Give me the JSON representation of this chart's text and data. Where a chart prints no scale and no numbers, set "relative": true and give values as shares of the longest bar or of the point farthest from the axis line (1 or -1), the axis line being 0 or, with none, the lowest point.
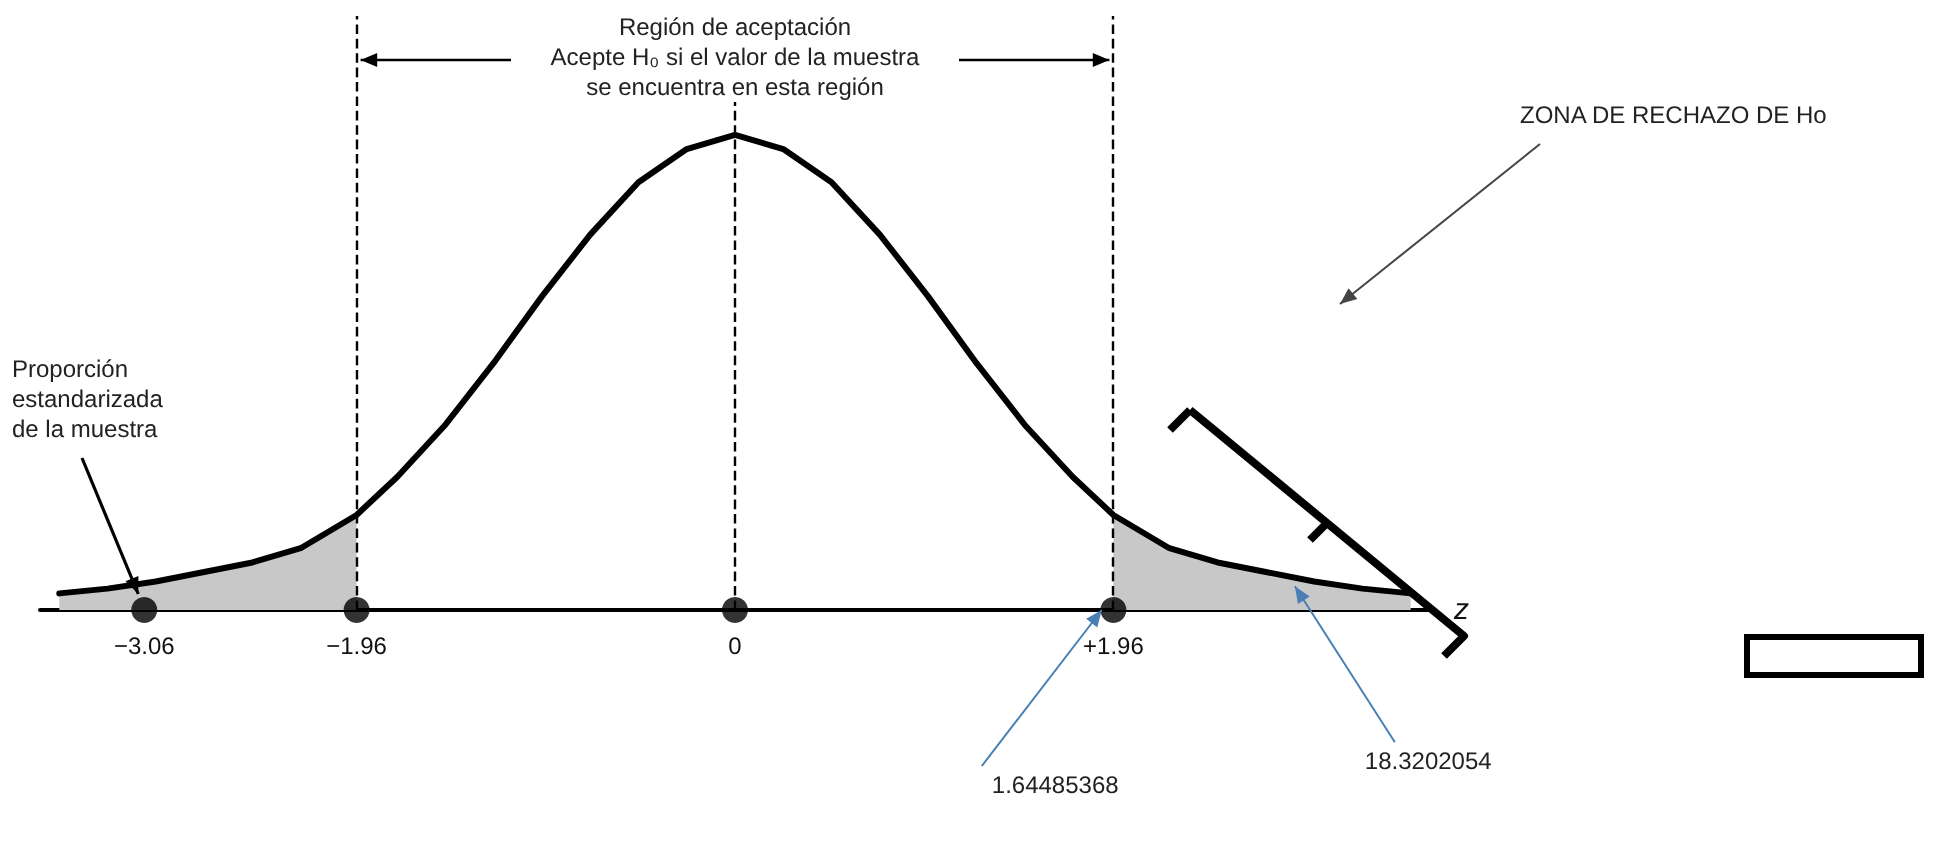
{
  "chart_data": {
    "type": "line",
    "relative": true,
    "xlabel": "z",
    "xlim": [
      -3.6,
      3.6
    ],
    "xticks": [
      {
        "value": -3.06,
        "label": "−3.06"
      },
      {
        "value": -1.96,
        "label": "−1.96"
      },
      0,
      {
        "value": 1.96,
        "label": "+1.96"
      }
    ],
    "tick_labels": "x",
    "grid": false,
    "marker": "none",
    "series": [
      {
        "type": "area",
        "color": "#c8c8c8",
        "x": [
          -3.5,
          -3.25,
          -3,
          -2.75,
          -2.5,
          -2.25,
          -1.96
        ],
        "values": [
          0.035,
          0.045,
          0.06,
          0.08,
          0.1,
          0.13,
          0.2
        ]
      },
      {
        "type": "area",
        "color": "#c8c8c8",
        "x": [
          1.96,
          2.25,
          2.5,
          2.75,
          3,
          3.25,
          3.5
        ],
        "values": [
          0.2,
          0.13,
          0.1,
          0.08,
          0.06,
          0.045,
          0.035
        ]
      },
      {
        "type": "line",
        "color": "#000000",
        "x": [
          -3.5,
          -3.25,
          -3,
          -2.75,
          -2.5,
          -2.25,
          -1.96,
          -1.75,
          -1.5,
          -1.25,
          -1,
          -0.75,
          -0.5,
          -0.25,
          0,
          0.25,
          0.5,
          0.75,
          1,
          1.25,
          1.5,
          1.75,
          1.96,
          2.25,
          2.5,
          2.75,
          3,
          3.25,
          3.5
        ],
        "values": [
          0.035,
          0.045,
          0.06,
          0.08,
          0.1,
          0.13,
          0.2,
          0.28,
          0.39,
          0.52,
          0.66,
          0.79,
          0.9,
          0.97,
          1,
          0.97,
          0.9,
          0.79,
          0.66,
          0.52,
          0.39,
          0.28,
          0.2,
          0.13,
          0.1,
          0.08,
          0.06,
          0.045,
          0.035
        ]
      },
      {
        "type": "scatter",
        "marker": "circle",
        "color": "#000000",
        "x": [
          -3.06,
          -1.96,
          0,
          1.96
        ],
        "values": [
          0,
          0,
          0,
          0
        ]
      }
    ],
    "ref_lines": [
      {
        "axis": "x",
        "value": -1.96,
        "line_style": "dashed",
        "color": "#000000"
      },
      {
        "axis": "x",
        "value": 0,
        "line_style": "dashed",
        "color": "#000000"
      },
      {
        "axis": "x",
        "value": 1.96,
        "line_style": "dashed",
        "color": "#000000"
      }
    ],
    "annotations": [
      "Región de aceptación\nAcepte H₀ si el valor de la muestra\nse encuentra en esta región",
      {
        "text": "Proporción\nestandarizada\nde la muestra",
        "x": -3.06,
        "y": 0
      },
      "ZONA DE RECHAZO DE Ho",
      {
        "text": "1.64485368",
        "x": 1.9,
        "y": 0
      },
      {
        "text": "18.3202054",
        "x": 2.9,
        "y": 0.05
      }
    ]
  }
}
